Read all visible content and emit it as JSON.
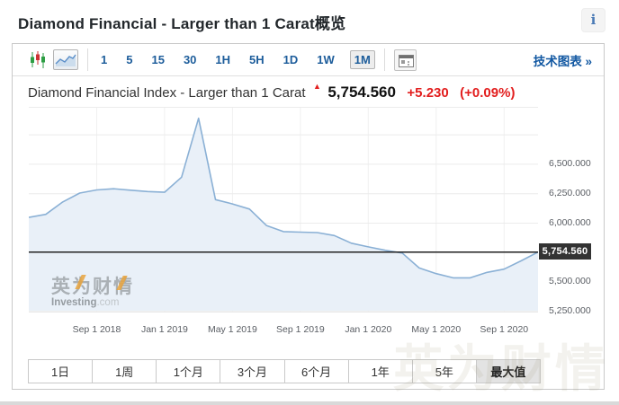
{
  "header": {
    "title": "Diamond Financial - Larger than 1 Carat概览",
    "info_glyph": "i"
  },
  "toolbar": {
    "chart_types": [
      {
        "name": "candlestick-chart",
        "selected": false
      },
      {
        "name": "line-chart",
        "selected": true
      }
    ],
    "intervals": [
      {
        "label": "1",
        "selected": false
      },
      {
        "label": "5",
        "selected": false
      },
      {
        "label": "15",
        "selected": false
      },
      {
        "label": "30",
        "selected": false
      },
      {
        "label": "1H",
        "selected": false
      },
      {
        "label": "5H",
        "selected": false
      },
      {
        "label": "1D",
        "selected": false
      },
      {
        "label": "1W",
        "selected": false
      },
      {
        "label": "1M",
        "selected": true
      }
    ],
    "news_icon": "news-panel-icon",
    "technical_chart_label": "技术图表 »"
  },
  "chart_header": {
    "instrument": "Diamond Financial Index - Larger than 1 Carat",
    "arrow": "▲",
    "price": "5,754.560",
    "change": "+5.230",
    "change_pct": "(+0.09%)"
  },
  "chart_data": {
    "type": "area",
    "title": "Diamond Financial Index - Larger than 1 Carat",
    "x": [
      "2018-05",
      "2018-06",
      "2018-07",
      "2018-08",
      "2018-09",
      "2018-10",
      "2018-11",
      "2018-12",
      "2019-01",
      "2019-02",
      "2019-03",
      "2019-04",
      "2019-05",
      "2019-06",
      "2019-07",
      "2019-08",
      "2019-09",
      "2019-10",
      "2019-11",
      "2019-12",
      "2020-01",
      "2020-02",
      "2020-03",
      "2020-04",
      "2020-05",
      "2020-06",
      "2020-07",
      "2020-08",
      "2020-09",
      "2020-10",
      "2020-11"
    ],
    "values": [
      6049,
      6075,
      6180,
      6255,
      6282,
      6292,
      6280,
      6268,
      6262,
      6390,
      6890,
      6200,
      6163,
      6120,
      5980,
      5928,
      5924,
      5920,
      5895,
      5830,
      5799,
      5770,
      5746,
      5620,
      5572,
      5536,
      5536,
      5582,
      5610,
      5680,
      5754.56
    ],
    "ylim": [
      5250,
      6900
    ],
    "grid": true,
    "legend": false,
    "y_axis_side": "right",
    "current_price": 5754.56,
    "price_line_value": 5754.56,
    "price_tag_label": "5,754.560",
    "y_gridlines": [
      6750,
      6500,
      6250,
      6000,
      5750,
      5500,
      5250
    ],
    "y_ticks": [
      {
        "value": 6500,
        "label": "6,500.000"
      },
      {
        "value": 6250,
        "label": "6,250.000"
      },
      {
        "value": 6000,
        "label": "6,000.000"
      },
      {
        "value": 5500,
        "label": "5,500.000"
      },
      {
        "value": 5250,
        "label": "5,250.000"
      }
    ],
    "x_ticks": [
      {
        "index": 4,
        "label": "Sep 1 2018"
      },
      {
        "index": 8,
        "label": "Jan 1 2019"
      },
      {
        "index": 12,
        "label": "May 1 2019"
      },
      {
        "index": 16,
        "label": "Sep 1 2019"
      },
      {
        "index": 20,
        "label": "Jan 1 2020"
      },
      {
        "index": 24,
        "label": "May 1 2020"
      },
      {
        "index": 28,
        "label": "Sep 1 2020"
      }
    ]
  },
  "watermark": {
    "cn": "英为财情",
    "en_bold": "Investing",
    "en_light": ".com"
  },
  "periods": [
    {
      "label": "1日",
      "selected": false
    },
    {
      "label": "1周",
      "selected": false
    },
    {
      "label": "1个月",
      "selected": false
    },
    {
      "label": "3个月",
      "selected": false
    },
    {
      "label": "6个月",
      "selected": false
    },
    {
      "label": "1年",
      "selected": false
    },
    {
      "label": "5年",
      "selected": false
    },
    {
      "label": "最大值",
      "selected": true
    }
  ],
  "colors": {
    "accent_blue": "#1d5d9b",
    "up_red": "#e21e1e",
    "area_fill": "#e9f0f8",
    "area_line": "#8ab0d5",
    "price_line": "#222222",
    "price_tag_bg": "#333333",
    "grid": "#ebebeb",
    "panel_border": "#c9c9c9"
  }
}
